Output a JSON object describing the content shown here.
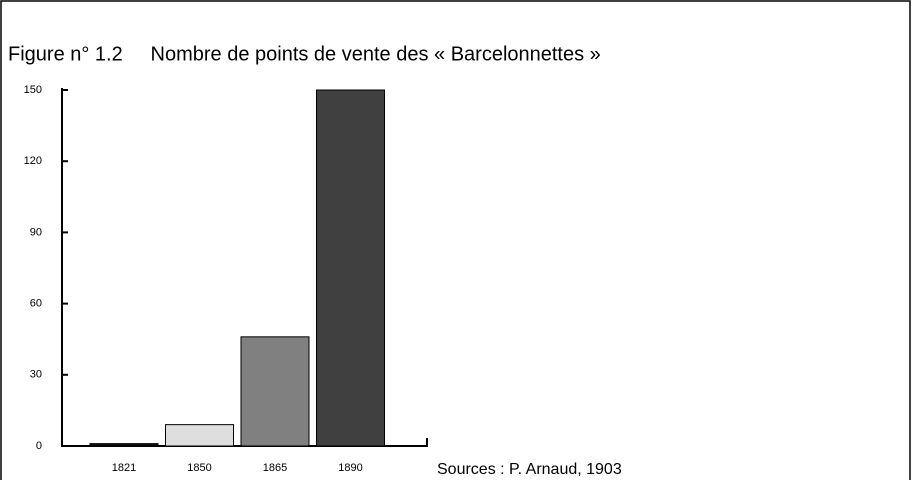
{
  "chart_data": {
    "type": "bar",
    "title": "Figure n° 1.2     Nombre de points de vente des « Barcelonnettes »",
    "annotation": "Sources : P. Arnaud, 1903",
    "categories": [
      "1821",
      "1850",
      "1865",
      "1890"
    ],
    "values": [
      1,
      9,
      46,
      150
    ],
    "colors": [
      "#111111",
      "#dedede",
      "#808080",
      "#404040"
    ],
    "ylim": [
      0,
      150
    ],
    "yticks": [
      0,
      30,
      60,
      90,
      120,
      150
    ],
    "grid": false
  }
}
